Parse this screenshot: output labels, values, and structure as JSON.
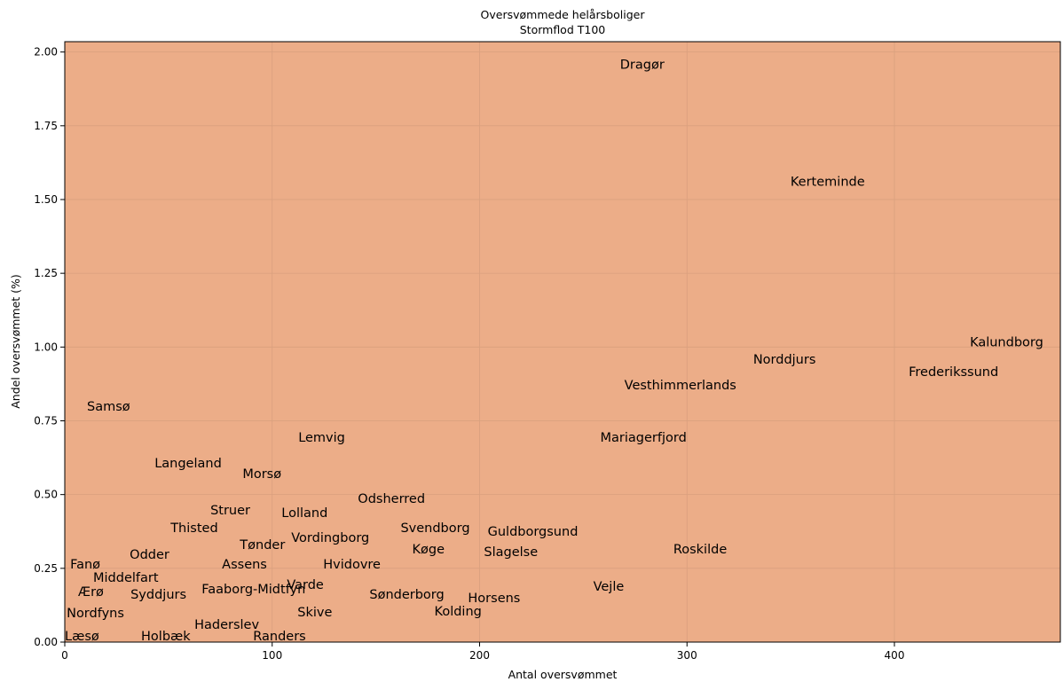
{
  "chart_data": {
    "type": "scatter",
    "title": "Oversvømmede helårsboliger",
    "subtitle": "Stormflod T100",
    "x_label": "Antal oversvømmet",
    "y_label": "Andel oversvømmet (%)",
    "background_color": "#ecad88",
    "grid": true,
    "xlim": [
      0,
      480
    ],
    "ylim": [
      0,
      2.035
    ],
    "xticks": [
      0,
      100,
      200,
      300,
      400
    ],
    "yticks": [
      {
        "value": 0,
        "label": "0.00"
      },
      0.25,
      {
        "value": 0.5,
        "label": "0.50"
      },
      0.75,
      {
        "value": 1,
        "label": "1.00"
      },
      1.25,
      {
        "value": 1.5,
        "label": "1.50"
      },
      1.75,
      {
        "value": 2,
        "label": "2.00"
      }
    ],
    "labels": [
      "Dragør",
      "Kerteminde",
      "Kalundborg",
      "Norddjurs",
      "Frederikssund",
      "Vesthimmerlands",
      "Samsø",
      "Lemvig",
      "Mariagerfjord",
      "Langeland",
      "Morsø",
      "Odsherred",
      "Struer",
      "Lolland",
      "Thisted",
      "Svendborg",
      "Guldborgsund",
      "Vordingborg",
      "Tønder",
      "Køge",
      "Roskilde",
      "Slagelse",
      "Odder",
      "Fanø",
      "Assens",
      "Hvidovre",
      "Middelfart",
      "Varde",
      "Vejle",
      "Faaborg-Midtfyn",
      "Ærø",
      "Syddjurs",
      "Sønderborg",
      "Horsens",
      "Kolding",
      "Skive",
      "Nordfyns",
      "Haderslev",
      "Læsø",
      "Holbæk",
      "Randers"
    ],
    "x": [
      267.7,
      349.9,
      436.4,
      331.9,
      406.9,
      269.8,
      10.7,
      112.6,
      258.2,
      43.3,
      85.7,
      141.3,
      70.2,
      104.5,
      51.0,
      161.9,
      203.9,
      109.2,
      84.4,
      167.5,
      293.4,
      202.1,
      31.3,
      2.6,
      75.8,
      124.6,
      13.7,
      107.1,
      254.8,
      66.0,
      6.4,
      31.7,
      146.9,
      194.4,
      178.2,
      112.2,
      0.9,
      62.5,
      0,
      36.8,
      90.8
    ],
    "values": [
      1.943,
      1.546,
      1.002,
      0.944,
      0.902,
      0.857,
      0.785,
      0.68,
      0.68,
      0.592,
      0.556,
      0.472,
      0.433,
      0.424,
      0.373,
      0.373,
      0.361,
      0.34,
      0.316,
      0.301,
      0.301,
      0.292,
      0.283,
      0.25,
      0.25,
      0.25,
      0.205,
      0.18,
      0.174,
      0.165,
      0.156,
      0.147,
      0.147,
      0.135,
      0.09,
      0.087,
      0.084,
      0.045,
      0.006,
      0.006,
      0.006
    ]
  }
}
